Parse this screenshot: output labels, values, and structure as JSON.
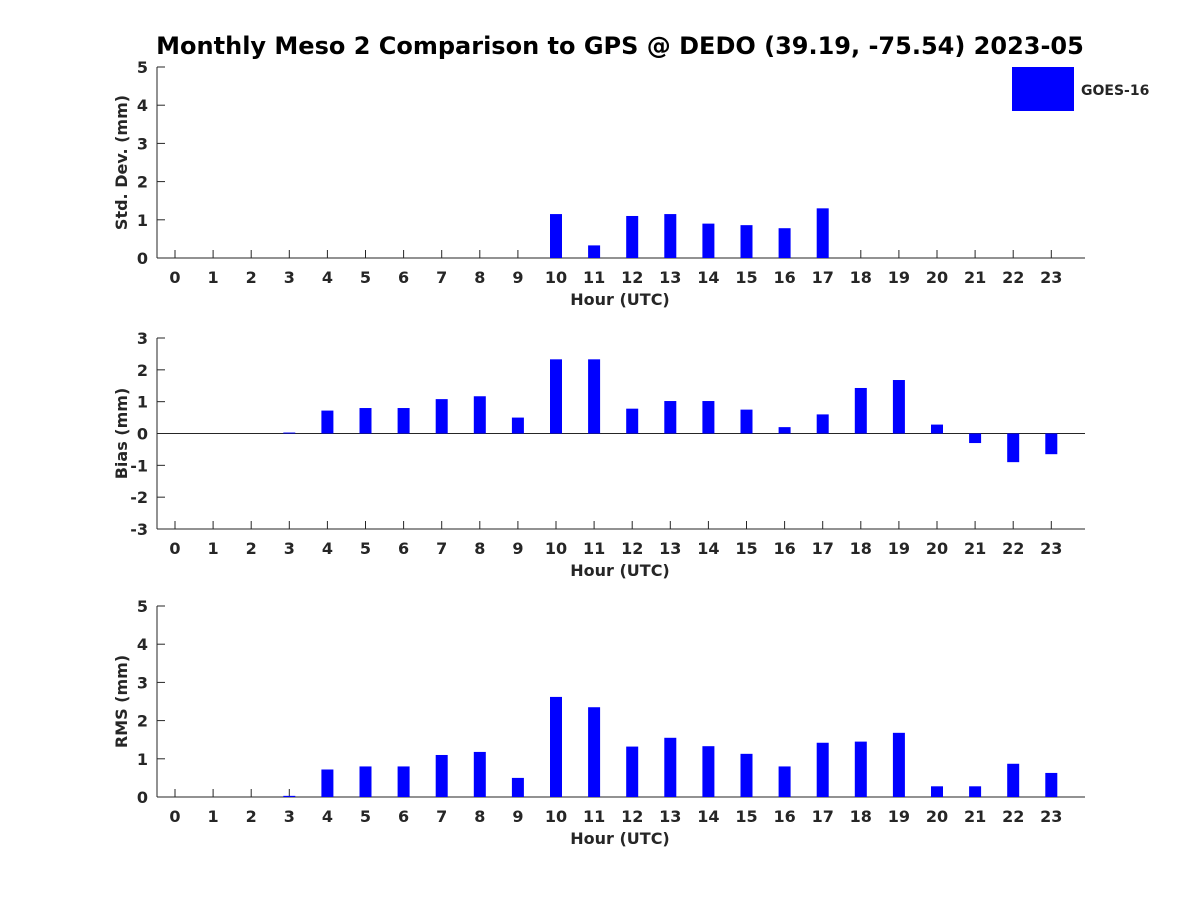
{
  "title": "Monthly Meso 2 Comparison to GPS @ DEDO (39.19, -75.54) 2023-05",
  "colors": {
    "bar": "#0000ff",
    "axis": "#262626",
    "background": "#ffffff"
  },
  "legend": {
    "label": "GOES-16",
    "placement": "top-right"
  },
  "chart_data": [
    {
      "type": "bar",
      "ylabel": "Std. Dev. (mm)",
      "xlabel": "Hour (UTC)",
      "ylim": [
        0,
        5
      ],
      "yticks": [
        "0",
        "1",
        "2",
        "3",
        "4",
        "5"
      ],
      "categories": [
        "0",
        "1",
        "2",
        "3",
        "4",
        "5",
        "6",
        "7",
        "8",
        "9",
        "10",
        "11",
        "12",
        "13",
        "14",
        "15",
        "16",
        "17",
        "18",
        "19",
        "20",
        "21",
        "22",
        "23"
      ],
      "series": [
        {
          "name": "GOES-16",
          "values": [
            0,
            0,
            0,
            0,
            0,
            0,
            0,
            0,
            0,
            0,
            1.15,
            0.33,
            1.1,
            1.15,
            0.9,
            0.86,
            0.78,
            1.3,
            0,
            0,
            0,
            0,
            0,
            0
          ]
        }
      ]
    },
    {
      "type": "bar",
      "ylabel": "Bias (mm)",
      "xlabel": "Hour (UTC)",
      "ylim": [
        -3,
        3
      ],
      "yticks": [
        "-3",
        "-2",
        "-1",
        "0",
        "1",
        "2",
        "3"
      ],
      "categories": [
        "0",
        "1",
        "2",
        "3",
        "4",
        "5",
        "6",
        "7",
        "8",
        "9",
        "10",
        "11",
        "12",
        "13",
        "14",
        "15",
        "16",
        "17",
        "18",
        "19",
        "20",
        "21",
        "22",
        "23"
      ],
      "series": [
        {
          "name": "GOES-16",
          "values": [
            0,
            0,
            0,
            0.03,
            0.72,
            0.8,
            0.8,
            1.08,
            1.17,
            0.5,
            2.33,
            2.33,
            0.78,
            1.02,
            1.02,
            0.75,
            0.2,
            0.6,
            1.43,
            1.68,
            0.28,
            -0.3,
            -0.9,
            -0.65
          ]
        }
      ]
    },
    {
      "type": "bar",
      "ylabel": "RMS (mm)",
      "xlabel": "Hour (UTC)",
      "ylim": [
        0,
        5
      ],
      "yticks": [
        "0",
        "1",
        "2",
        "3",
        "4",
        "5"
      ],
      "categories": [
        "0",
        "1",
        "2",
        "3",
        "4",
        "5",
        "6",
        "7",
        "8",
        "9",
        "10",
        "11",
        "12",
        "13",
        "14",
        "15",
        "16",
        "17",
        "18",
        "19",
        "20",
        "21",
        "22",
        "23"
      ],
      "series": [
        {
          "name": "GOES-16",
          "values": [
            0,
            0,
            0,
            0.03,
            0.72,
            0.8,
            0.8,
            1.1,
            1.18,
            0.5,
            2.62,
            2.35,
            1.32,
            1.55,
            1.33,
            1.13,
            0.8,
            1.42,
            1.45,
            1.68,
            0.28,
            0.28,
            0.87,
            0.63
          ]
        }
      ]
    }
  ]
}
